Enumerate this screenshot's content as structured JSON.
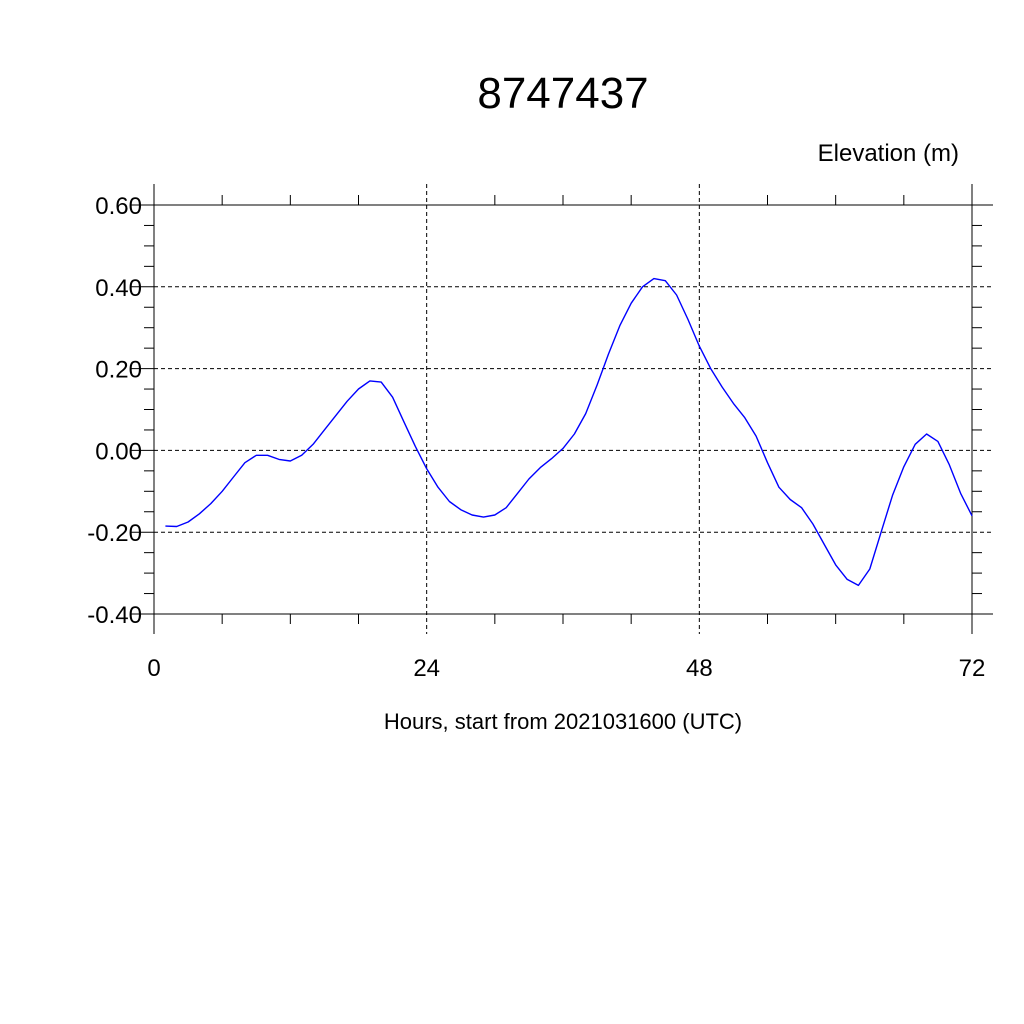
{
  "chart_data": {
    "type": "line",
    "title": "8747437",
    "ylabel": "Elevation (m)",
    "xlabel": "Hours, start from 2021031600 (UTC)",
    "xlim": [
      0,
      72
    ],
    "ylim": [
      -0.4,
      0.6
    ],
    "x_ticks": [
      0,
      24,
      48,
      72
    ],
    "x_tick_labels": [
      "0",
      "24",
      "48",
      "72"
    ],
    "y_ticks": [
      -0.4,
      -0.2,
      0.0,
      0.2,
      0.4,
      0.6
    ],
    "y_tick_labels": [
      "-0.40",
      "-0.20",
      "0.00",
      "0.20",
      "0.40",
      "0.60"
    ],
    "grid": true,
    "series": [
      {
        "color": "#0000ff",
        "x": [
          1,
          2,
          3,
          4,
          5,
          6,
          7,
          8,
          9,
          10,
          11,
          12,
          13,
          14,
          15,
          16,
          17,
          18,
          19,
          20,
          21,
          22,
          23,
          24,
          25,
          26,
          27,
          28,
          29,
          30,
          31,
          32,
          33,
          34,
          35,
          36,
          37,
          38,
          39,
          40,
          41,
          42,
          43,
          44,
          45,
          46,
          47,
          48,
          49,
          50,
          51,
          52,
          53,
          54,
          55,
          56,
          57,
          58,
          59,
          60,
          61,
          62,
          63,
          64,
          65,
          66,
          67,
          68,
          69,
          70,
          71,
          72
        ],
        "values": [
          -0.185,
          -0.186,
          -0.175,
          -0.155,
          -0.13,
          -0.1,
          -0.065,
          -0.03,
          -0.012,
          -0.012,
          -0.022,
          -0.026,
          -0.012,
          0.015,
          0.05,
          0.085,
          0.12,
          0.15,
          0.17,
          0.167,
          0.13,
          0.07,
          0.01,
          -0.045,
          -0.09,
          -0.125,
          -0.145,
          -0.158,
          -0.163,
          -0.158,
          -0.14,
          -0.105,
          -0.07,
          -0.042,
          -0.02,
          0.005,
          0.04,
          0.09,
          0.16,
          0.235,
          0.305,
          0.36,
          0.4,
          0.42,
          0.415,
          0.38,
          0.32,
          0.255,
          0.2,
          0.155,
          0.115,
          0.08,
          0.035,
          -0.03,
          -0.09,
          -0.12,
          -0.14,
          -0.18,
          -0.23,
          -0.28,
          -0.315,
          -0.33,
          -0.29,
          -0.2,
          -0.11,
          -0.04,
          0.015,
          0.04,
          0.022,
          -0.035,
          -0.105,
          -0.16
        ]
      }
    ]
  }
}
